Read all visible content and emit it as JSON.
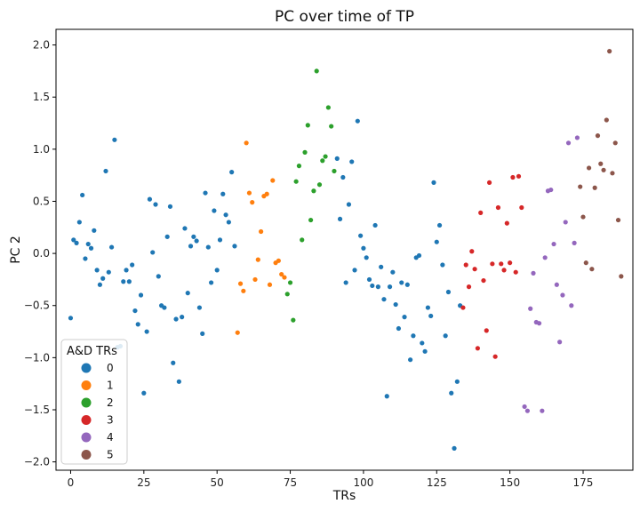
{
  "chart_data": {
    "type": "scatter",
    "title": "PC over time of TP",
    "xlabel": "TRs",
    "ylabel": "PC 2",
    "xlim": [
      -5,
      192
    ],
    "ylim": [
      -2.08,
      2.15
    ],
    "xticks": [
      0,
      25,
      50,
      75,
      100,
      125,
      150,
      175
    ],
    "yticks": [
      -2.0,
      -1.5,
      -1.0,
      -0.5,
      0.0,
      0.5,
      1.0,
      1.5,
      2.0
    ],
    "xtick_labels": [
      "0",
      "25",
      "50",
      "75",
      "100",
      "125",
      "150",
      "175"
    ],
    "ytick_labels": [
      "−2.0",
      "−1.5",
      "−1.0",
      "−0.5",
      "0.0",
      "0.5",
      "1.0",
      "1.5",
      "2.0"
    ],
    "grid": false,
    "legend": {
      "title": "A&D TRs",
      "placement": "bottom-left"
    },
    "series": [
      {
        "name": "0",
        "color": "#1f77b4",
        "points": [
          [
            0,
            -0.62
          ],
          [
            1,
            0.13
          ],
          [
            2,
            0.1
          ],
          [
            3,
            0.3
          ],
          [
            4,
            0.56
          ],
          [
            5,
            -0.05
          ],
          [
            6,
            0.09
          ],
          [
            7,
            0.05
          ],
          [
            8,
            0.22
          ],
          [
            9,
            -0.16
          ],
          [
            10,
            -0.3
          ],
          [
            11,
            -0.24
          ],
          [
            12,
            0.79
          ],
          [
            13,
            -0.18
          ],
          [
            14,
            0.06
          ],
          [
            15,
            1.09
          ],
          [
            16,
            -0.9
          ],
          [
            17,
            -0.89
          ],
          [
            18,
            -0.27
          ],
          [
            19,
            -0.16
          ],
          [
            20,
            -0.27
          ],
          [
            21,
            -0.11
          ],
          [
            22,
            -0.55
          ],
          [
            23,
            -0.68
          ],
          [
            24,
            -0.4
          ],
          [
            25,
            -1.34
          ],
          [
            26,
            -0.75
          ],
          [
            27,
            0.52
          ],
          [
            28,
            0.01
          ],
          [
            29,
            0.47
          ],
          [
            30,
            -0.22
          ],
          [
            31,
            -0.5
          ],
          [
            32,
            -0.52
          ],
          [
            33,
            0.16
          ],
          [
            34,
            0.45
          ],
          [
            35,
            -1.05
          ],
          [
            36,
            -0.63
          ],
          [
            37,
            -1.23
          ],
          [
            38,
            -0.61
          ],
          [
            39,
            0.24
          ],
          [
            40,
            -0.38
          ],
          [
            41,
            0.07
          ],
          [
            42,
            0.16
          ],
          [
            43,
            0.12
          ],
          [
            44,
            -0.52
          ],
          [
            45,
            -0.77
          ],
          [
            46,
            0.58
          ],
          [
            47,
            0.06
          ],
          [
            48,
            -0.28
          ],
          [
            49,
            0.41
          ],
          [
            50,
            -0.16
          ],
          [
            51,
            0.13
          ],
          [
            52,
            0.57
          ],
          [
            53,
            0.37
          ],
          [
            54,
            0.3
          ],
          [
            55,
            0.78
          ],
          [
            56,
            0.07
          ],
          [
            91,
            0.91
          ],
          [
            92,
            0.33
          ],
          [
            93,
            0.73
          ],
          [
            94,
            -0.28
          ],
          [
            95,
            0.47
          ],
          [
            96,
            0.88
          ],
          [
            97,
            -0.16
          ],
          [
            98,
            1.27
          ],
          [
            99,
            0.17
          ],
          [
            100,
            0.05
          ],
          [
            101,
            -0.04
          ],
          [
            102,
            -0.25
          ],
          [
            103,
            -0.31
          ],
          [
            104,
            0.27
          ],
          [
            105,
            -0.32
          ],
          [
            106,
            -0.13
          ],
          [
            107,
            -0.44
          ],
          [
            108,
            -1.37
          ],
          [
            109,
            -0.32
          ],
          [
            110,
            -0.18
          ],
          [
            111,
            -0.49
          ],
          [
            112,
            -0.72
          ],
          [
            113,
            -0.28
          ],
          [
            114,
            -0.61
          ],
          [
            115,
            -0.3
          ],
          [
            116,
            -1.02
          ],
          [
            117,
            -0.79
          ],
          [
            118,
            -0.04
          ],
          [
            119,
            -0.02
          ],
          [
            120,
            -0.86
          ],
          [
            121,
            -0.94
          ],
          [
            122,
            -0.52
          ],
          [
            123,
            -0.6
          ],
          [
            124,
            0.68
          ],
          [
            125,
            0.11
          ],
          [
            126,
            0.27
          ],
          [
            127,
            -0.11
          ],
          [
            128,
            -0.79
          ],
          [
            129,
            -0.37
          ],
          [
            130,
            -1.34
          ],
          [
            131,
            -1.87
          ],
          [
            132,
            -1.23
          ],
          [
            133,
            -0.5
          ]
        ]
      },
      {
        "name": "1",
        "color": "#ff7f0e",
        "points": [
          [
            57,
            -0.76
          ],
          [
            58,
            -0.29
          ],
          [
            59,
            -0.36
          ],
          [
            60,
            1.06
          ],
          [
            61,
            0.58
          ],
          [
            62,
            0.49
          ],
          [
            63,
            -0.25
          ],
          [
            64,
            -0.06
          ],
          [
            65,
            0.21
          ],
          [
            66,
            0.55
          ],
          [
            67,
            0.57
          ],
          [
            68,
            -0.3
          ],
          [
            69,
            0.7
          ],
          [
            70,
            -0.09
          ],
          [
            71,
            -0.07
          ],
          [
            72,
            -0.2
          ],
          [
            73,
            -0.23
          ]
        ]
      },
      {
        "name": "2",
        "color": "#2ca02c",
        "points": [
          [
            74,
            -0.39
          ],
          [
            75,
            -0.28
          ],
          [
            76,
            -0.64
          ],
          [
            77,
            0.69
          ],
          [
            78,
            0.84
          ],
          [
            79,
            0.13
          ],
          [
            80,
            0.97
          ],
          [
            81,
            1.23
          ],
          [
            82,
            0.32
          ],
          [
            83,
            0.6
          ],
          [
            84,
            1.75
          ],
          [
            85,
            0.66
          ],
          [
            86,
            0.89
          ],
          [
            87,
            0.93
          ],
          [
            88,
            1.4
          ],
          [
            89,
            1.22
          ],
          [
            90,
            0.79
          ]
        ]
      },
      {
        "name": "3",
        "color": "#d62728",
        "points": [
          [
            134,
            -0.52
          ],
          [
            135,
            -0.11
          ],
          [
            136,
            -0.32
          ],
          [
            137,
            0.02
          ],
          [
            138,
            -0.15
          ],
          [
            139,
            -0.91
          ],
          [
            140,
            0.39
          ],
          [
            141,
            -0.26
          ],
          [
            142,
            -0.74
          ],
          [
            143,
            0.68
          ],
          [
            144,
            -0.1
          ],
          [
            145,
            -0.99
          ],
          [
            146,
            0.44
          ],
          [
            147,
            -0.1
          ],
          [
            148,
            -0.16
          ],
          [
            149,
            0.29
          ],
          [
            150,
            -0.09
          ],
          [
            151,
            0.73
          ],
          [
            152,
            -0.18
          ],
          [
            153,
            0.74
          ],
          [
            154,
            0.44
          ]
        ]
      },
      {
        "name": "4",
        "color": "#9467bd",
        "points": [
          [
            155,
            -1.47
          ],
          [
            156,
            -1.51
          ],
          [
            157,
            -0.53
          ],
          [
            158,
            -0.19
          ],
          [
            159,
            -0.66
          ],
          [
            160,
            -0.67
          ],
          [
            161,
            -1.51
          ],
          [
            162,
            -0.04
          ],
          [
            163,
            0.6
          ],
          [
            164,
            0.61
          ],
          [
            165,
            0.09
          ],
          [
            166,
            -0.3
          ],
          [
            167,
            -0.85
          ],
          [
            168,
            -0.4
          ],
          [
            169,
            0.3
          ],
          [
            170,
            1.06
          ],
          [
            171,
            -0.5
          ],
          [
            172,
            0.1
          ],
          [
            173,
            1.11
          ]
        ]
      },
      {
        "name": "5",
        "color": "#8c564b",
        "points": [
          [
            174,
            0.64
          ],
          [
            175,
            0.35
          ],
          [
            176,
            -0.09
          ],
          [
            177,
            0.82
          ],
          [
            178,
            -0.15
          ],
          [
            179,
            0.63
          ],
          [
            180,
            1.13
          ],
          [
            181,
            0.86
          ],
          [
            182,
            0.8
          ],
          [
            183,
            1.28
          ],
          [
            184,
            1.94
          ],
          [
            185,
            0.77
          ],
          [
            186,
            1.06
          ],
          [
            187,
            0.32
          ],
          [
            188,
            -0.22
          ]
        ]
      }
    ]
  }
}
